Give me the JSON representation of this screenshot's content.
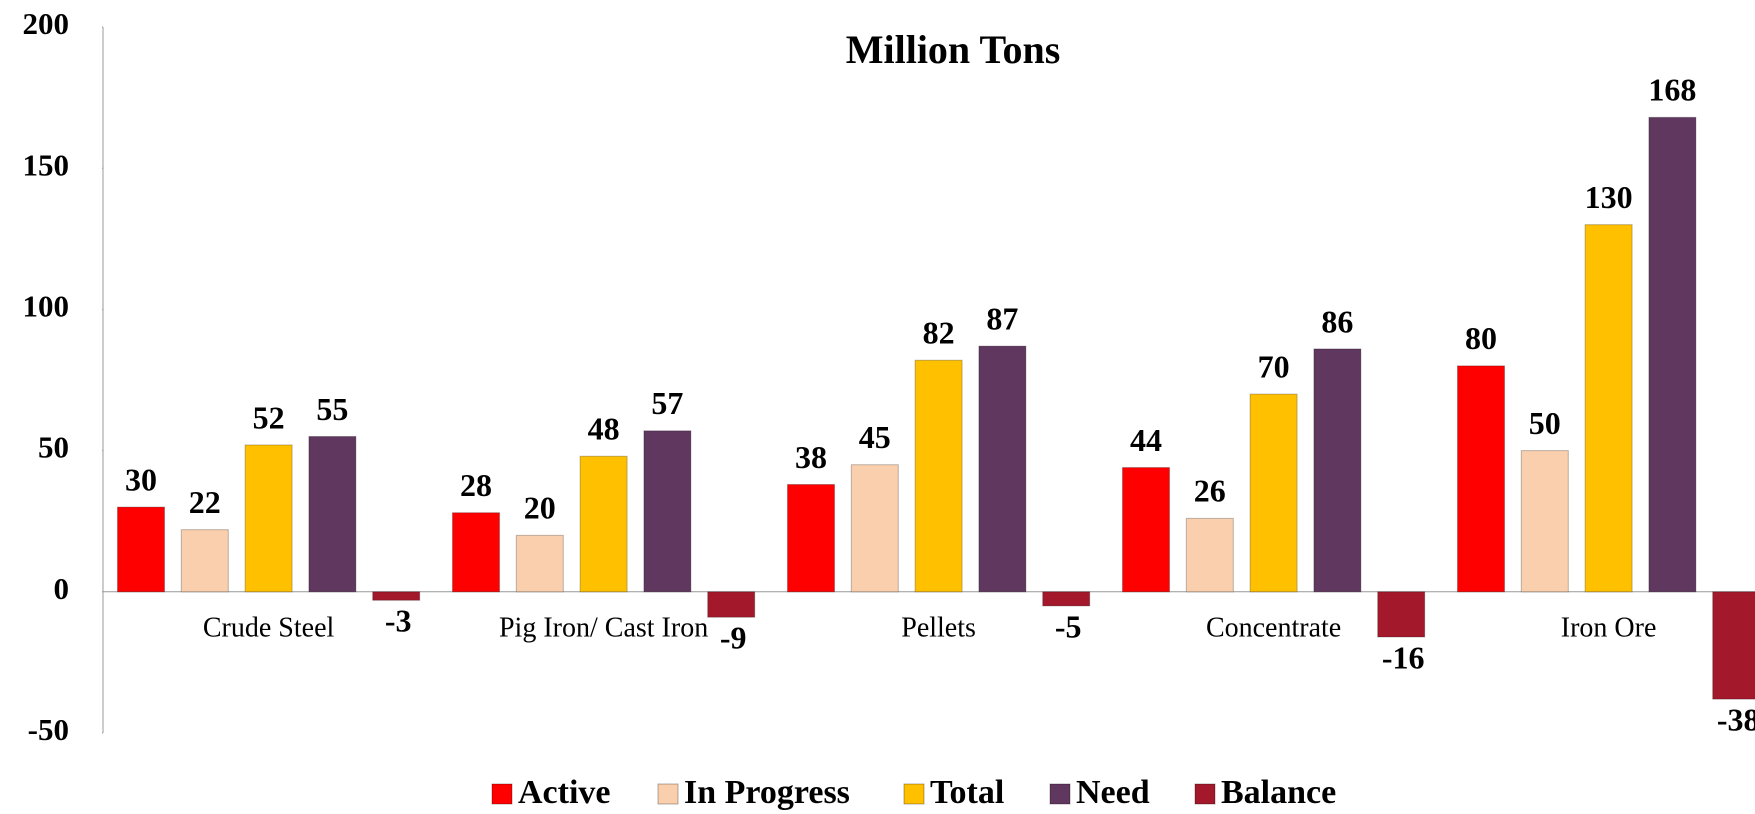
{
  "chart_data": {
    "type": "bar",
    "title": "Million Tons",
    "categories": [
      "Crude Steel",
      "Pig Iron/ Cast Iron",
      "Pellets",
      "Concentrate",
      "Iron Ore"
    ],
    "series": [
      {
        "name": "Active",
        "color": "#ff0000",
        "values": [
          30,
          28,
          38,
          44,
          80
        ]
      },
      {
        "name": "In Progress",
        "color": "#f9cfae",
        "values": [
          22,
          20,
          45,
          26,
          50
        ]
      },
      {
        "name": "Total",
        "color": "#ffc000",
        "values": [
          52,
          48,
          82,
          70,
          130
        ]
      },
      {
        "name": "Need",
        "color": "#60375f",
        "values": [
          55,
          57,
          87,
          86,
          168
        ]
      },
      {
        "name": "Balance",
        "color": "#a3192b",
        "values": [
          -3,
          -9,
          -5,
          -16,
          -38
        ]
      }
    ],
    "ylim": [
      -50,
      200
    ],
    "yticks": [
      -50,
      0,
      50,
      100,
      150,
      200
    ],
    "grid": false,
    "legend": "bottom"
  }
}
